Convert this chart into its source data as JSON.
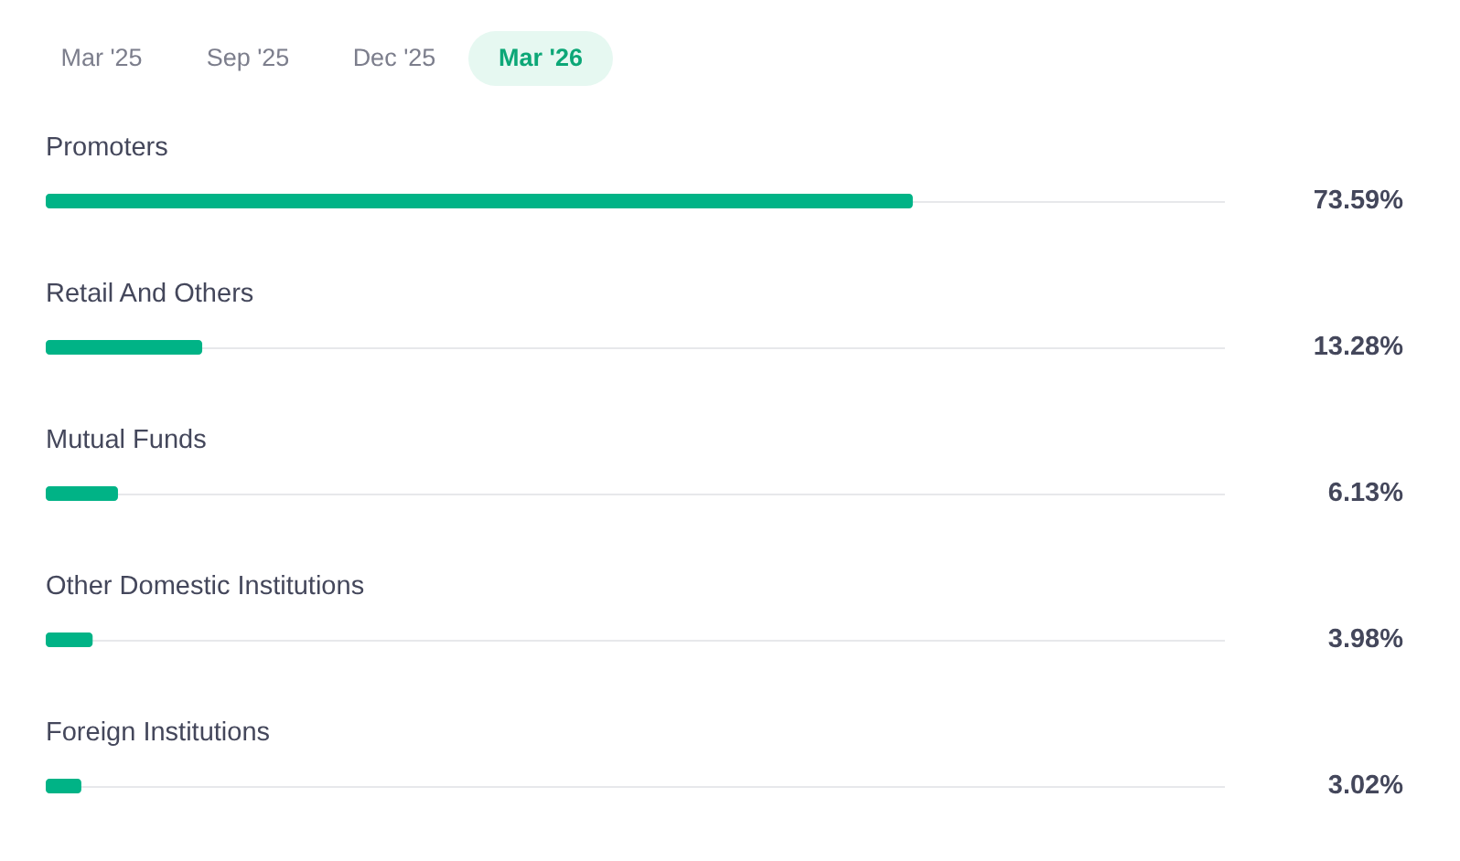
{
  "chart_data": {
    "type": "bar",
    "orientation": "horizontal",
    "categories": [
      "Promoters",
      "Retail And Others",
      "Mutual Funds",
      "Other Domestic Institutions",
      "Foreign Institutions"
    ],
    "values": [
      73.59,
      13.28,
      6.13,
      3.98,
      3.02
    ],
    "value_labels": [
      "73.59%",
      "13.28%",
      "6.13%",
      "3.98%",
      "3.02%"
    ],
    "color": "#00b386",
    "xlim": [
      0,
      100
    ],
    "tick_labels": "y",
    "annotations": [
      "Mar '25",
      "Sep '25",
      "Dec '25",
      "Mar '26"
    ]
  }
}
